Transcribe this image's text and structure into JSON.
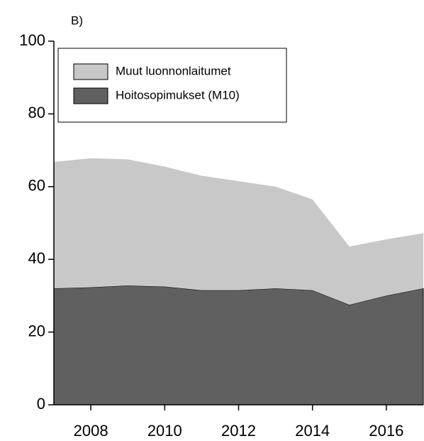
{
  "chart_data": {
    "type": "area",
    "stacked": true,
    "title": "B)",
    "x": [
      2007,
      2008,
      2009,
      2010,
      2011,
      2012,
      2013,
      2014,
      2015,
      2016,
      2017
    ],
    "series": [
      {
        "name": "Hoitosopimukset (M10)",
        "color": "#606060",
        "values": [
          32,
          32.3,
          32.8,
          32.5,
          31.5,
          31.5,
          32,
          31.5,
          27.5,
          30,
          32
        ]
      },
      {
        "name": "Muut luonnonlaitumet",
        "color": "#c8c8c8",
        "values": [
          34.8,
          35.5,
          34.7,
          33,
          31.5,
          30,
          28,
          25,
          16,
          15.5,
          15.2
        ]
      }
    ],
    "xlim": [
      2007,
      2017
    ],
    "xticks": [
      2008,
      2010,
      2012,
      2014,
      2016
    ],
    "ylim": [
      0,
      100
    ],
    "yticks": [
      0,
      20,
      40,
      60,
      80,
      100
    ],
    "legend": "upper left"
  }
}
